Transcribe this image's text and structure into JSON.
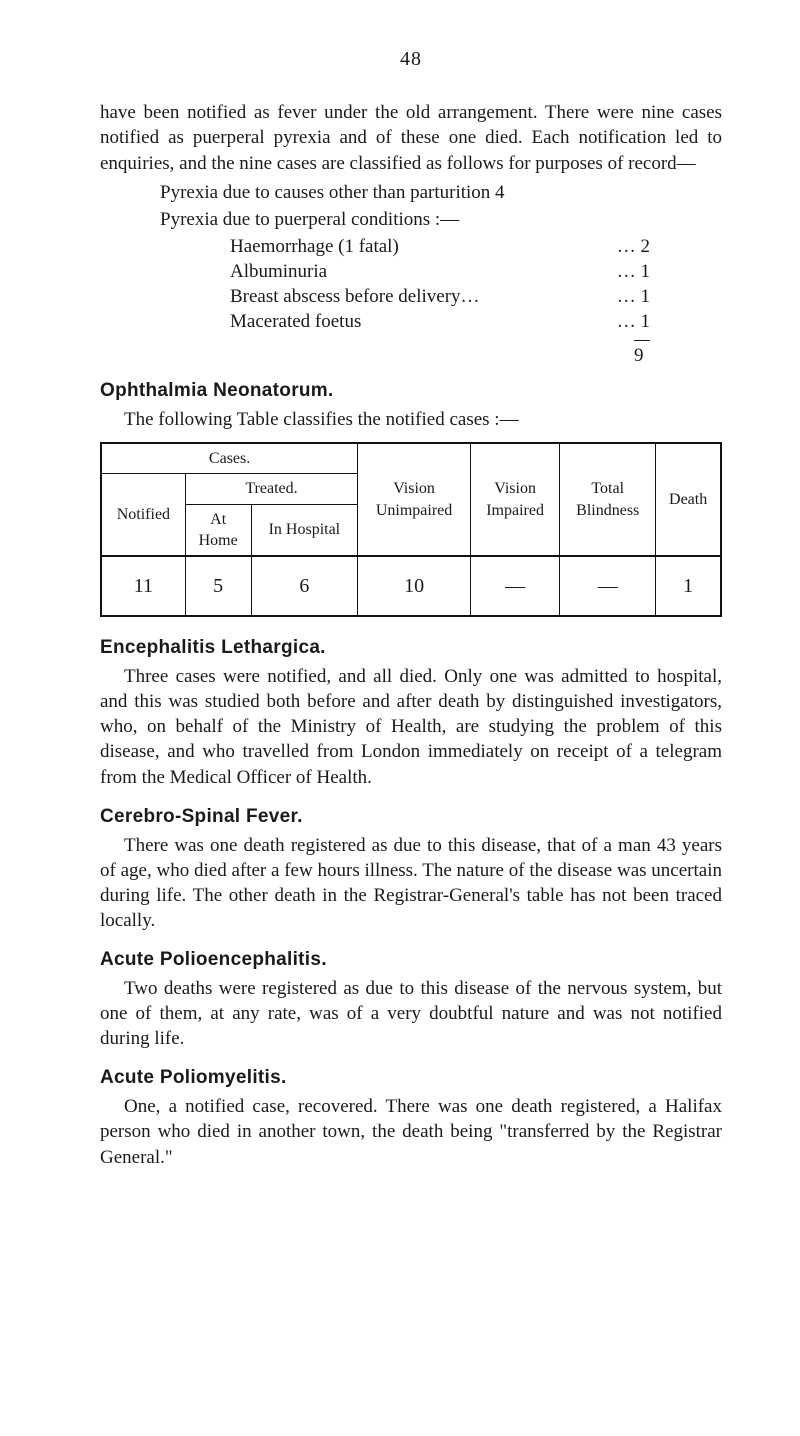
{
  "page_number": "48",
  "intro_para": "have been notified as fever under the old arrangement. There were nine cases notified as puerperal pyrexia and of these one died. Each notification led to enquiries, and the nine cases are classified as follows for purposes of record—",
  "pyrexia_line1": "Pyrexia due to causes other than parturition 4",
  "pyrexia_line2": "Pyrexia due to puerperal conditions :—",
  "causes": [
    {
      "label": "Haemorrhage  (1  fatal)",
      "dots": "…",
      "val": "… 2"
    },
    {
      "label": "Albuminuria",
      "dots": "…          …",
      "val": "… 1"
    },
    {
      "label": "Breast abscess before delivery…",
      "dots": "",
      "val": "… 1"
    },
    {
      "label": "Macerated  foetus",
      "dots": "…          …",
      "val": "… 1"
    }
  ],
  "causes_total": "9",
  "sections": {
    "ophthalmia": {
      "heading": "Ophthalmia Neonatorum.",
      "lead": "The following Table classifies the notified cases :—"
    },
    "enc": {
      "heading": "Encephalitis Lethargica.",
      "body": "Three cases were notified, and all died. Only one was admitted to hospital, and this was studied both before and after death by distinguished investigators, who, on behalf of the Ministry of Health, are studying the problem of this disease, and who travelled from London immediately on receipt of a telegram from the Medical Officer of Health."
    },
    "csf": {
      "heading": "Cerebro-Spinal Fever.",
      "body": "There was one death registered as due to this disease, that of a man 43 years of age, who died after a few hours illness. The nature of the disease was uncertain during life. The other death in the Registrar-General's table has not been traced locally."
    },
    "polioenc": {
      "heading": "Acute Polioencephalitis.",
      "body": "Two deaths were registered as due to this disease of the nervous system, but one of them, at any rate, was of a very doubtful nature and was not notified during life."
    },
    "poliomy": {
      "heading": "Acute Poliomyelitis.",
      "body": "One, a notified case, recovered. There was one death registered, a Halifax person who died in another town, the death being \"transferred by the Registrar General.\""
    }
  },
  "table": {
    "hd_cases": "Cases.",
    "hd_notified": "Notified",
    "hd_treated": "Treated.",
    "hd_athome": "At\nHome",
    "hd_inhosp": "In Hospital",
    "hd_vis_un": "Vision\nUnimpaired",
    "hd_vis_imp": "Vision\nImpaired",
    "hd_total_bl": "Total\nBlindness",
    "hd_death": "Death",
    "row": {
      "notified": "11",
      "athome": "5",
      "inhosp": "6",
      "vis_un": "10",
      "vis_imp": "—",
      "total_bl": "—",
      "death": "1"
    }
  }
}
